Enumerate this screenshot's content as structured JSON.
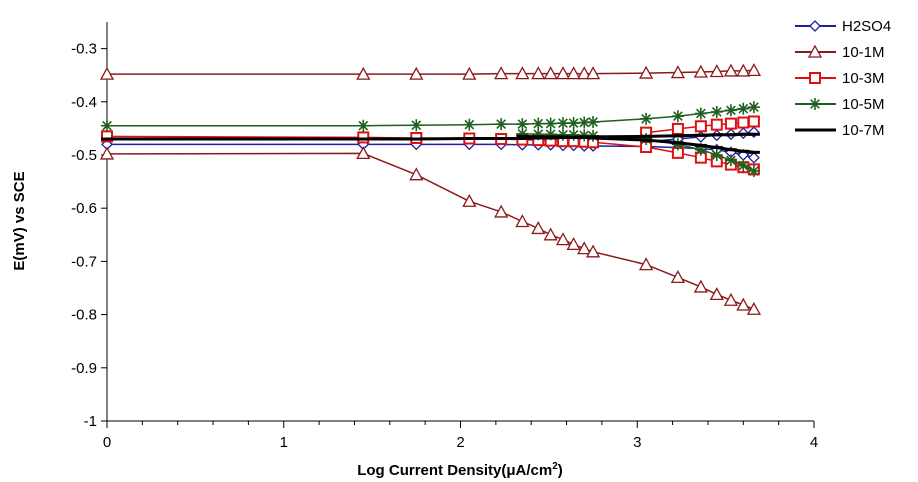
{
  "chart_data": {
    "type": "line",
    "title": "",
    "xlabel_main": "Log Current Density(μA/cm",
    "xlabel_sup": "2",
    "xlabel_close": ")",
    "ylabel": "E(mV) vs SCE",
    "xlim": [
      0,
      4
    ],
    "ylim": [
      -1,
      -0.25
    ],
    "xticks": [
      0,
      1,
      2,
      3,
      4
    ],
    "xtick_labels": [
      "0",
      "1",
      "2",
      "3",
      "4"
    ],
    "yticks": [
      -0.3,
      -0.4,
      -0.5,
      -0.6,
      -0.7,
      -0.8,
      -0.9,
      -1
    ],
    "ytick_labels": [
      "-0.3",
      "-0.4",
      "-0.5",
      "-0.6",
      "-0.7",
      "-0.8",
      "-0.9",
      "-1"
    ],
    "grid": false,
    "legend_position": "top-right",
    "series": [
      {
        "name": "H2SO4",
        "color": "#1f1fa0",
        "marker": "diamond",
        "branches": [
          {
            "x": [
              0,
              1.45,
              1.75,
              2.05,
              2.23,
              2.35,
              2.44,
              2.51,
              2.58,
              2.64,
              2.7,
              2.75,
              3.05,
              3.23,
              3.36,
              3.45,
              3.53,
              3.6,
              3.66
            ],
            "y": [
              -0.48,
              -0.48,
              -0.48,
              -0.48,
              -0.48,
              -0.481,
              -0.481,
              -0.481,
              -0.482,
              -0.482,
              -0.483,
              -0.483,
              -0.484,
              -0.486,
              -0.488,
              -0.49,
              -0.495,
              -0.5,
              -0.505
            ]
          },
          {
            "x": [
              3.05,
              3.23,
              3.36,
              3.45,
              3.53,
              3.6,
              3.66
            ],
            "y": [
              -0.475,
              -0.47,
              -0.466,
              -0.463,
              -0.461,
              -0.459,
              -0.457
            ]
          }
        ]
      },
      {
        "name": "10-1M",
        "color": "#8b1a1a",
        "marker": "triangle",
        "branches": [
          {
            "x": [
              0,
              1.45,
              1.75,
              2.05,
              2.23,
              2.35,
              2.44,
              2.51,
              2.58,
              2.64,
              2.7,
              2.75,
              3.05,
              3.23,
              3.36,
              3.45,
              3.53,
              3.6,
              3.66
            ],
            "y": [
              -0.348,
              -0.348,
              -0.348,
              -0.348,
              -0.347,
              -0.347,
              -0.347,
              -0.347,
              -0.347,
              -0.347,
              -0.347,
              -0.347,
              -0.346,
              -0.345,
              -0.344,
              -0.343,
              -0.342,
              -0.342,
              -0.341
            ]
          },
          {
            "x": [
              0,
              1.45,
              1.75,
              2.05,
              2.23,
              2.35,
              2.44,
              2.51,
              2.58,
              2.64,
              2.7,
              2.75,
              3.05,
              3.23,
              3.36,
              3.45,
              3.53,
              3.6,
              3.66
            ],
            "y": [
              -0.498,
              -0.497,
              -0.537,
              -0.587,
              -0.607,
              -0.625,
              -0.638,
              -0.65,
              -0.659,
              -0.668,
              -0.676,
              -0.682,
              -0.706,
              -0.73,
              -0.748,
              -0.762,
              -0.773,
              -0.782,
              -0.79
            ]
          }
        ]
      },
      {
        "name": "10-3M",
        "color": "#dd1111",
        "marker": "square",
        "branches": [
          {
            "x": [
              0,
              1.45,
              1.75,
              2.05,
              2.23,
              2.35,
              2.44,
              2.51,
              2.58,
              2.64,
              2.7,
              2.75,
              3.05,
              3.23,
              3.36,
              3.45,
              3.53,
              3.6,
              3.66
            ],
            "y": [
              -0.465,
              -0.467,
              -0.468,
              -0.469,
              -0.47,
              -0.471,
              -0.472,
              -0.473,
              -0.474,
              -0.474,
              -0.475,
              -0.476,
              -0.485,
              -0.496,
              -0.505,
              -0.512,
              -0.518,
              -0.523,
              -0.527
            ]
          },
          {
            "x": [
              3.05,
              3.23,
              3.36,
              3.45,
              3.53,
              3.6,
              3.66
            ],
            "y": [
              -0.458,
              -0.451,
              -0.446,
              -0.443,
              -0.441,
              -0.439,
              -0.437
            ]
          }
        ]
      },
      {
        "name": "10-5M",
        "color": "#1f5f1f",
        "marker": "star",
        "branches": [
          {
            "x": [
              0,
              1.45,
              1.75,
              2.05,
              2.23,
              2.35,
              2.44,
              2.51,
              2.58,
              2.64,
              2.7,
              2.75,
              3.05,
              3.23,
              3.36,
              3.45,
              3.53,
              3.6,
              3.66
            ],
            "y": [
              -0.445,
              -0.445,
              -0.444,
              -0.443,
              -0.442,
              -0.442,
              -0.441,
              -0.441,
              -0.44,
              -0.44,
              -0.439,
              -0.438,
              -0.432,
              -0.427,
              -0.422,
              -0.419,
              -0.416,
              -0.413,
              -0.41
            ]
          },
          {
            "x": [
              2.35,
              2.44,
              2.51,
              2.58,
              2.64,
              2.7,
              2.75,
              3.05,
              3.23,
              3.36,
              3.45,
              3.53,
              3.6,
              3.66
            ],
            "y": [
              -0.46,
              -0.461,
              -0.461,
              -0.462,
              -0.462,
              -0.463,
              -0.464,
              -0.47,
              -0.48,
              -0.49,
              -0.5,
              -0.51,
              -0.52,
              -0.53
            ]
          }
        ]
      },
      {
        "name": "10-7M",
        "color": "#000000",
        "marker": "dash",
        "branches": [
          {
            "x": [
              0,
              1.45,
              1.75,
              2.05,
              2.23,
              2.35,
              2.44,
              2.51,
              2.58,
              2.64,
              2.7,
              2.75,
              3.05,
              3.23,
              3.36,
              3.45,
              3.53,
              3.6,
              3.66
            ],
            "y": [
              -0.47,
              -0.47,
              -0.47,
              -0.469,
              -0.469,
              -0.469,
              -0.468,
              -0.468,
              -0.467,
              -0.467,
              -0.466,
              -0.466,
              -0.465,
              -0.464,
              -0.463,
              -0.462,
              -0.462,
              -0.461,
              -0.461
            ]
          },
          {
            "x": [
              2.35,
              2.44,
              2.51,
              2.58,
              2.64,
              2.7,
              2.75,
              3.05,
              3.23,
              3.36,
              3.45,
              3.53,
              3.6,
              3.66
            ],
            "y": [
              -0.465,
              -0.466,
              -0.466,
              -0.466,
              -0.467,
              -0.467,
              -0.468,
              -0.472,
              -0.477,
              -0.482,
              -0.486,
              -0.49,
              -0.493,
              -0.495
            ]
          }
        ]
      }
    ]
  }
}
